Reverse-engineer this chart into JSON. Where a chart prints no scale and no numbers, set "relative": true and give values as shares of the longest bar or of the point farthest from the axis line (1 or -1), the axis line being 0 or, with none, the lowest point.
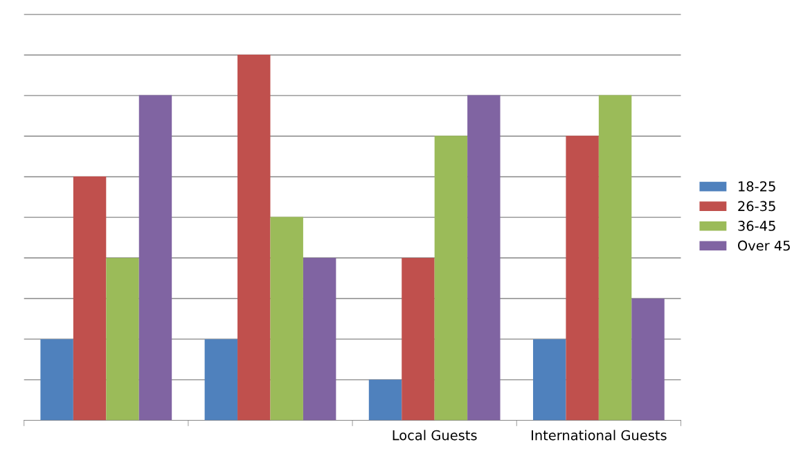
{
  "chart_data": {
    "type": "bar",
    "relative": true,
    "categories": [
      null,
      null,
      "Local Guests",
      "International Guests"
    ],
    "series": [
      {
        "name": "18-25",
        "color": "#4f81bd",
        "values": [
          0.222,
          0.222,
          0.111,
          0.222
        ]
      },
      {
        "name": "26-35",
        "color": "#c0504d",
        "values": [
          0.667,
          1,
          0.444,
          0.778
        ]
      },
      {
        "name": "36-45",
        "color": "#9bbb59",
        "values": [
          0.444,
          0.556,
          0.778,
          0.889
        ]
      },
      {
        "name": "Over 45",
        "color": "#8064a2",
        "values": [
          0.889,
          0.444,
          0.889,
          0.333
        ]
      }
    ],
    "grid": "y",
    "legend": "right"
  }
}
